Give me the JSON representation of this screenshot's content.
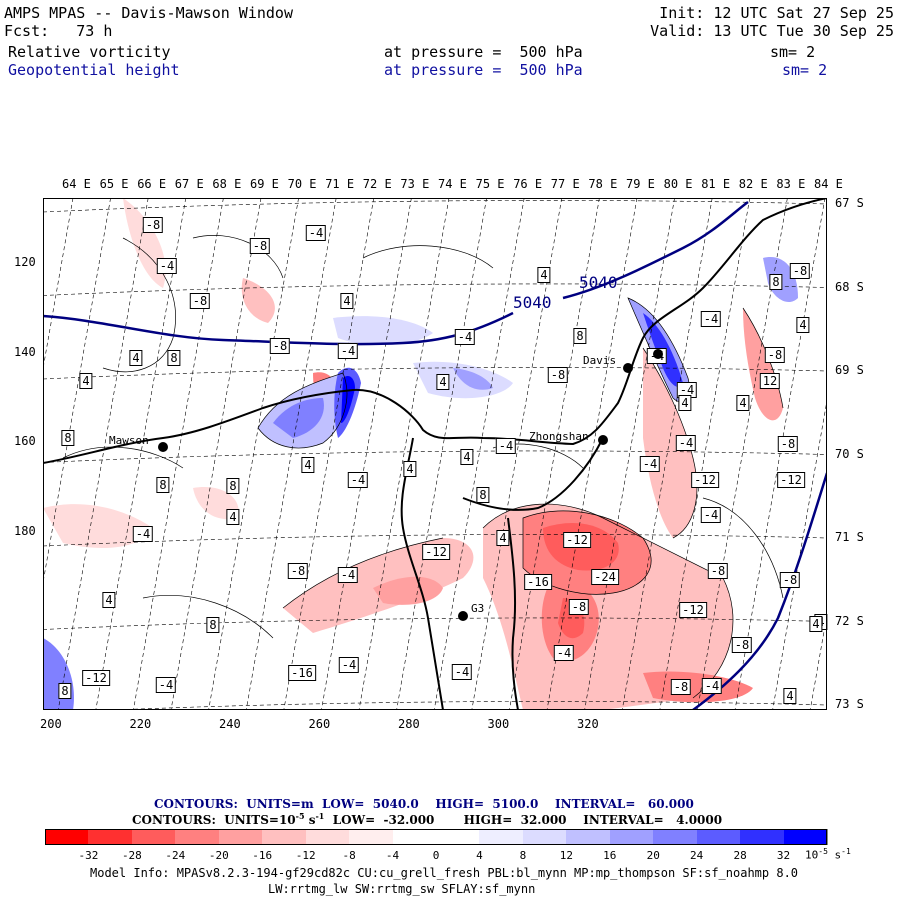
{
  "header": {
    "title": "AMPS MPAS -- Davis-Mawson Window",
    "forecast": "Fcst:   73 h",
    "init": "Init: 12 UTC Sat 27 Sep 25",
    "valid": "Valid: 13 UTC Tue 30 Sep 25",
    "field1": {
      "name": "Relative vorticity",
      "pressure": "at pressure =  500 hPa",
      "sm": "sm= 2"
    },
    "field2": {
      "name": "Geopotential height",
      "pressure": "at pressure =  500 hPa",
      "sm": "sm= 2"
    }
  },
  "map": {
    "lon_labels": [
      "64 E",
      "65 E",
      "66 E",
      "67 E",
      "68 E",
      "69 E",
      "70 E",
      "71 E",
      "72 E",
      "73 E",
      "74 E",
      "75 E",
      "76 E",
      "77 E",
      "78 E",
      "79 E",
      "80 E",
      "81 E",
      "82 E",
      "83 E",
      "84 E"
    ],
    "lat_labels": [
      "67 S",
      "68 S",
      "69 S",
      "70 S",
      "71 S",
      "72 S",
      "73 S"
    ],
    "x_ticks": [
      "200",
      "220",
      "240",
      "260",
      "280",
      "300",
      "320"
    ],
    "y_ticks": [
      "120",
      "140",
      "160",
      "180"
    ],
    "stations": [
      {
        "name": "Mawson",
        "mark": "dot"
      },
      {
        "name": "Davis",
        "mark": "dot"
      },
      {
        "name": "Zhongshan",
        "mark": "dot"
      },
      {
        "name": "G3",
        "mark": "dot"
      }
    ],
    "height_contours": [
      "5040",
      "5040"
    ],
    "vorticity_labels": [
      "-8",
      "-8",
      "-4",
      "-8",
      "-4",
      "4",
      "4",
      "-4",
      "-8",
      "4",
      "8",
      "-8",
      "-4",
      "8",
      "4",
      "-4",
      "-8",
      "4",
      "8",
      "4",
      "8",
      "8",
      "8",
      "4",
      "-4",
      "4",
      "4",
      "-4",
      "8",
      "4",
      "-4",
      "-8",
      "-4",
      "4",
      "8",
      "4",
      "-12",
      "-12",
      "-24",
      "-16",
      "-8",
      "-12",
      "-8",
      "-4",
      "-12",
      "-8",
      "-4",
      "-8",
      "4",
      "-16",
      "-4",
      "-4",
      "-8",
      "-4",
      "-4",
      "-12",
      "4",
      "8",
      "-8",
      "-4",
      "-8",
      "-12",
      "-4",
      "4",
      "4",
      "-4",
      "-4",
      "12",
      "4"
    ]
  },
  "footer": {
    "contours1": {
      "prefix": "CONTOURS:  UNITS=m  LOW=  5040.0",
      "high": "HIGH=  5100.0",
      "interval": "INTERVAL=   60.000"
    },
    "contours2": {
      "prefix": "CONTOURS:  UNITS=10",
      "exp": "-5",
      "mid": " s",
      "exp2": "-1",
      "low": "  LOW=  -32.000",
      "high": "HIGH=  32.000",
      "interval": "INTERVAL=   4.0000"
    },
    "colorbar_ticks": [
      "-32",
      "-28",
      "-24",
      "-20",
      "-16",
      "-12",
      "-8",
      "-4",
      "0",
      "4",
      "8",
      "12",
      "16",
      "20",
      "24",
      "28",
      "32"
    ],
    "colorbar_unit": "10",
    "colorbar_unit_exp": "-5",
    "colorbar_unit_s": " s",
    "colorbar_unit_exp2": "-1",
    "colorbar_colors": [
      "#ff0000",
      "#ff3030",
      "#ff5c5c",
      "#ff8080",
      "#ffa0a0",
      "#ffc0c0",
      "#ffdcdc",
      "#ffeeee",
      "#ffffff",
      "#ffffff",
      "#eeeeff",
      "#dcdcff",
      "#c0c0ff",
      "#a0a0ff",
      "#8080ff",
      "#5c5cff",
      "#3030ff",
      "#0000ff"
    ],
    "model_info": "Model Info: MPASv8.2.3-194-gf29cd82c CU:cu_grell_fresh PBL:bl_mynn MP:mp_thompson SF:sf_noahmp 8.0",
    "model_info2": "LW:rrtmg_lw SW:rrtmg_sw SFLAY:sf_mynn"
  }
}
